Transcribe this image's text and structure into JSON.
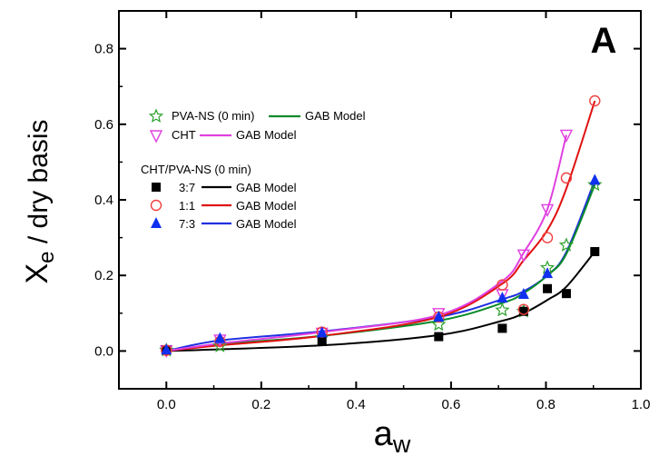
{
  "chart_data": {
    "type": "scatter",
    "panel_label": "A",
    "xlabel": "a",
    "xlabel_sub": "w",
    "ylabel": "X",
    "ylabel_sub": "e",
    "ylabel_rest": " / dry basis",
    "xlim": [
      -0.1,
      1.0
    ],
    "ylim": [
      -0.1,
      0.9
    ],
    "xticks": [
      0.0,
      0.2,
      0.4,
      0.6,
      0.8,
      1.0
    ],
    "xtick_labels": [
      "0.0",
      "0.2",
      "0.4",
      "0.6",
      "0.8",
      "1.0"
    ],
    "yticks": [
      0.0,
      0.2,
      0.4,
      0.6,
      0.8
    ],
    "ytick_labels": [
      "0.0",
      "0.2",
      "0.4",
      "0.6",
      "0.8"
    ],
    "grid": false,
    "legend_position": "upper-left",
    "legend_group_title": "CHT/PVA-NS (0 min)",
    "legend_model_label": "GAB Model",
    "series": [
      {
        "name": "PVA-NS (0 min)",
        "marker": "star-open",
        "color": "#2ca02c",
        "line_color": "#0a8a2a",
        "x": [
          0.0,
          0.113,
          0.328,
          0.574,
          0.708,
          0.753,
          0.803,
          0.843,
          0.903
        ],
        "y": [
          0.002,
          0.013,
          0.035,
          0.07,
          0.108,
          0.105,
          0.22,
          0.28,
          0.44
        ],
        "fit_x": [
          0.0,
          0.113,
          0.328,
          0.574,
          0.708,
          0.753,
          0.803,
          0.843,
          0.903
        ],
        "fit_y": [
          0.0,
          0.018,
          0.04,
          0.08,
          0.127,
          0.153,
          0.2,
          0.257,
          0.44
        ]
      },
      {
        "name": "CHT",
        "marker": "triangle-down-open",
        "color": "#e040e0",
        "line_color": "#e040e0",
        "x": [
          0.0,
          0.113,
          0.328,
          0.574,
          0.708,
          0.753,
          0.803,
          0.843
        ],
        "y": [
          0.002,
          0.03,
          0.048,
          0.1,
          0.15,
          0.255,
          0.375,
          0.572
        ],
        "fit_x": [
          0.0,
          0.113,
          0.328,
          0.574,
          0.708,
          0.753,
          0.803,
          0.843
        ],
        "fit_y": [
          0.0,
          0.02,
          0.05,
          0.095,
          0.185,
          0.26,
          0.375,
          0.572
        ]
      },
      {
        "name": "3:7",
        "marker": "square-filled",
        "color": "#000000",
        "line_color": "#000000",
        "x": [
          0.0,
          0.328,
          0.574,
          0.708,
          0.753,
          0.803,
          0.843,
          0.903
        ],
        "y": [
          0.002,
          0.025,
          0.038,
          0.06,
          0.105,
          0.165,
          0.152,
          0.263
        ],
        "fit_x": [
          0.0,
          0.328,
          0.574,
          0.708,
          0.753,
          0.803,
          0.843,
          0.903
        ],
        "fit_y": [
          0.0,
          0.015,
          0.042,
          0.08,
          0.1,
          0.135,
          0.17,
          0.263
        ]
      },
      {
        "name": "1:1",
        "marker": "circle-open",
        "color": "#f04040",
        "line_color": "#e01010",
        "x": [
          0.0,
          0.113,
          0.328,
          0.574,
          0.708,
          0.753,
          0.803,
          0.843,
          0.903
        ],
        "y": [
          0.002,
          0.025,
          0.05,
          0.09,
          0.175,
          0.11,
          0.3,
          0.458,
          0.662
        ],
        "fit_x": [
          0.0,
          0.113,
          0.328,
          0.574,
          0.708,
          0.753,
          0.803,
          0.843,
          0.903
        ],
        "fit_y": [
          0.0,
          0.015,
          0.04,
          0.09,
          0.178,
          0.24,
          0.32,
          0.43,
          0.662
        ]
      },
      {
        "name": "7:3",
        "marker": "triangle-up-filled",
        "color": "#1030f0",
        "line_color": "#2030e0",
        "x": [
          0.0,
          0.113,
          0.328,
          0.574,
          0.708,
          0.753,
          0.803,
          0.903
        ],
        "y": [
          0.003,
          0.033,
          0.048,
          0.09,
          0.14,
          0.15,
          0.205,
          0.452
        ],
        "fit_x": [
          0.0,
          0.113,
          0.328,
          0.574,
          0.708,
          0.753,
          0.803,
          0.843,
          0.903
        ],
        "fit_y": [
          0.0,
          0.028,
          0.052,
          0.09,
          0.137,
          0.158,
          0.2,
          0.262,
          0.452
        ]
      }
    ]
  }
}
